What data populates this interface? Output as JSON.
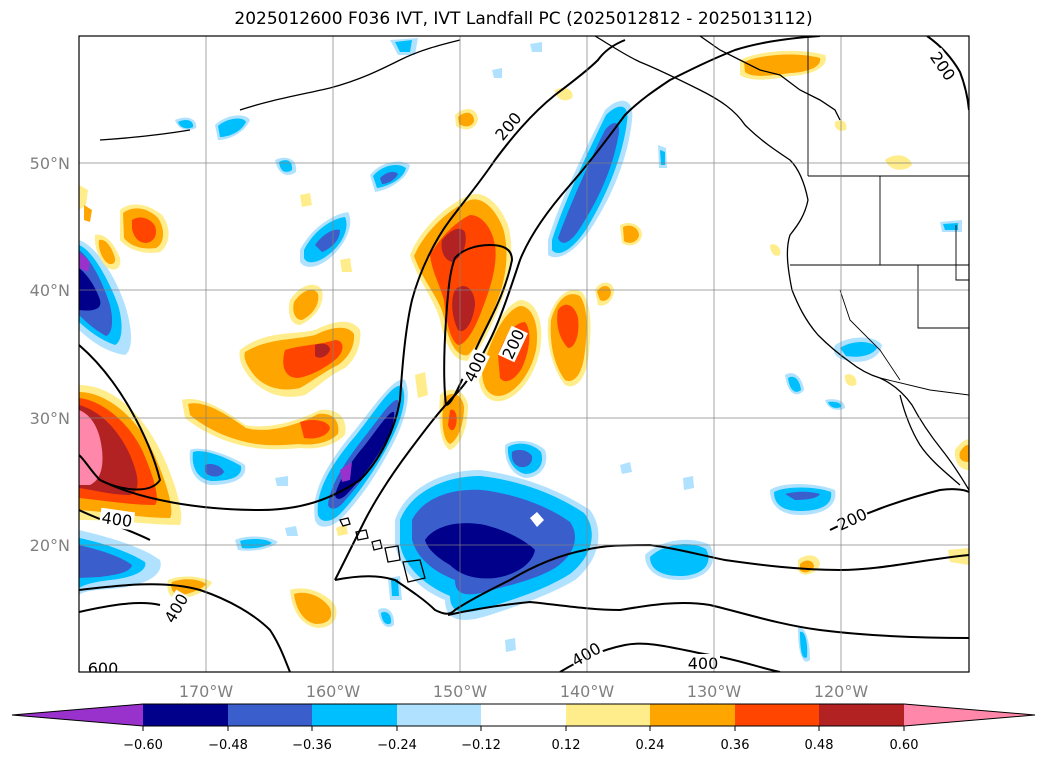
{
  "title": "2025012600 F036 IVT, IVT Landfall PC (2025012812 - 2025013112)",
  "map": {
    "lon_range": [
      -180,
      -110
    ],
    "lat_range": [
      10,
      60
    ],
    "gridlines": true,
    "lat_labels": [
      "50°N",
      "40°N",
      "30°N",
      "20°N"
    ],
    "lon_labels": [
      "170°W",
      "160°W",
      "150°W",
      "140°W",
      "130°W",
      "120°W"
    ],
    "ivt_contour_labels": [
      "200",
      "200",
      "200",
      "200",
      "400",
      "400",
      "400",
      "400",
      "600"
    ]
  },
  "colorbar": {
    "extend": "both",
    "ticks": [
      "−0.60",
      "−0.48",
      "−0.36",
      "−0.24",
      "−0.12",
      "0.12",
      "0.24",
      "0.36",
      "0.48",
      "0.60"
    ],
    "colors": {
      "under": "#9932cc",
      "bins": [
        "#00008b",
        "#3a5fcd",
        "#00bfff",
        "#b0e2ff",
        "#ffffff",
        "#ffec8b",
        "#ffa500",
        "#ff4500",
        "#b22222"
      ],
      "over": "#ff88aa"
    }
  }
}
